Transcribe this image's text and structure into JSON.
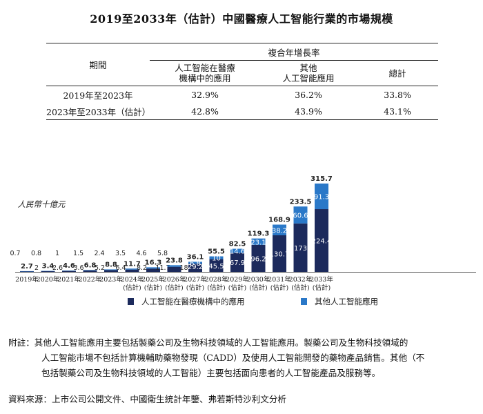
{
  "title": "2019至2033年（估計）中國醫療人工智能行業的市場規模",
  "cagr_table": {
    "period_header": "期間",
    "group_header": "複合年增長率",
    "columns": [
      "人工智能在醫療\n機構中的應用",
      "其他\n人工智能應用",
      "總計"
    ],
    "rows": [
      {
        "period": "2019年至2023年",
        "values": [
          "32.9%",
          "36.2%",
          "33.8%"
        ]
      },
      {
        "period": "2023年至2033年（估計）",
        "values": [
          "42.8%",
          "43.9%",
          "43.1%"
        ]
      }
    ]
  },
  "chart_data": {
    "type": "bar",
    "stacked": true,
    "ylabel": "人民幣十億元",
    "categories": [
      "2019年",
      "2020年",
      "2021年",
      "2022年",
      "2023年",
      "2024年\n(估計)",
      "2025年\n(估計)",
      "2026年\n(估計)",
      "2027年\n(估計)",
      "2028年\n(估計)",
      "2029年\n(估計)",
      "2030年\n(估計)",
      "2031年\n(估計)",
      "2032年\n(估計)",
      "2033年\n(估計)"
    ],
    "series": [
      {
        "name": "人工智能在醫療機構中的應用",
        "color": "#1c2a5c",
        "values": [
          2.0,
          2.6,
          3.6,
          5.2,
          6.4,
          8.2,
          11.7,
          18.0,
          29.2,
          45.5,
          67.9,
          96.2,
          130.7,
          173.0,
          224.4
        ]
      },
      {
        "name": "其他人工智能應用",
        "color": "#2a78c8",
        "values": [
          0.7,
          0.8,
          1.0,
          1.5,
          2.4,
          3.5,
          4.6,
          5.8,
          6.8,
          10.0,
          14.6,
          23.1,
          38.2,
          60.6,
          91.3
        ]
      }
    ],
    "totals": [
      2.7,
      3.4,
      4.6,
      6.8,
      8.8,
      11.7,
      16.3,
      23.8,
      36.1,
      55.5,
      82.5,
      119.3,
      168.9,
      233.5,
      315.7
    ],
    "ylim": [
      0,
      315.7
    ],
    "legend_position": "bottom"
  },
  "note": {
    "label": "附註：",
    "line1": "其他人工智能應用主要包括製藥公司及生物科技領域的人工智能應用。製藥公司及生物科技領域的",
    "line2": "人工智能市場不包括計算機輔助藥物發現（CADD）及使用人工智能開發的藥物產品銷售。其他（不",
    "line3": "包括製藥公司及生物科技領域的人工智能）主要包括面向患者的人工智能產品及服務等。"
  },
  "source": "資料來源：上市公司公開文件、中國衛生統計年鑒、弗若斯特沙利文分析"
}
